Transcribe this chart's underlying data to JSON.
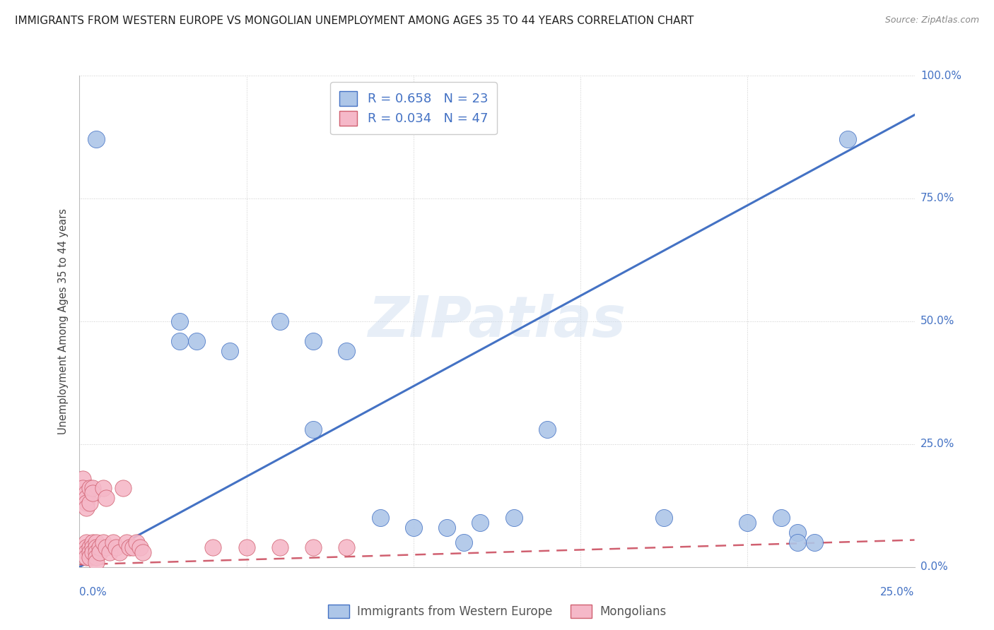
{
  "title": "IMMIGRANTS FROM WESTERN EUROPE VS MONGOLIAN UNEMPLOYMENT AMONG AGES 35 TO 44 YEARS CORRELATION CHART",
  "source": "Source: ZipAtlas.com",
  "ylabel": "Unemployment Among Ages 35 to 44 years",
  "legend_labels": [
    "Immigrants from Western Europe",
    "Mongolians"
  ],
  "blue_R": "R = 0.658",
  "blue_N": "N = 23",
  "pink_R": "R = 0.034",
  "pink_N": "N = 47",
  "blue_color": "#adc6e8",
  "pink_color": "#f5b8c8",
  "blue_line_color": "#4472c4",
  "pink_line_color": "#d06070",
  "watermark": "ZIPatlas",
  "blue_scatter": [
    [
      0.005,
      0.87
    ],
    [
      0.03,
      0.5
    ],
    [
      0.03,
      0.46
    ],
    [
      0.035,
      0.46
    ],
    [
      0.045,
      0.44
    ],
    [
      0.06,
      0.5
    ],
    [
      0.07,
      0.28
    ],
    [
      0.07,
      0.46
    ],
    [
      0.08,
      0.44
    ],
    [
      0.09,
      0.1
    ],
    [
      0.1,
      0.08
    ],
    [
      0.11,
      0.08
    ],
    [
      0.115,
      0.05
    ],
    [
      0.12,
      0.09
    ],
    [
      0.13,
      0.1
    ],
    [
      0.14,
      0.28
    ],
    [
      0.175,
      0.1
    ],
    [
      0.2,
      0.09
    ],
    [
      0.21,
      0.1
    ],
    [
      0.215,
      0.07
    ],
    [
      0.215,
      0.05
    ],
    [
      0.22,
      0.05
    ],
    [
      0.23,
      0.87
    ]
  ],
  "pink_scatter": [
    [
      0.001,
      0.18
    ],
    [
      0.001,
      0.16
    ],
    [
      0.002,
      0.15
    ],
    [
      0.002,
      0.14
    ],
    [
      0.002,
      0.13
    ],
    [
      0.002,
      0.12
    ],
    [
      0.002,
      0.05
    ],
    [
      0.002,
      0.04
    ],
    [
      0.002,
      0.03
    ],
    [
      0.002,
      0.02
    ],
    [
      0.003,
      0.16
    ],
    [
      0.003,
      0.13
    ],
    [
      0.003,
      0.04
    ],
    [
      0.003,
      0.03
    ],
    [
      0.003,
      0.02
    ],
    [
      0.004,
      0.16
    ],
    [
      0.004,
      0.15
    ],
    [
      0.004,
      0.05
    ],
    [
      0.004,
      0.04
    ],
    [
      0.004,
      0.03
    ],
    [
      0.005,
      0.05
    ],
    [
      0.005,
      0.04
    ],
    [
      0.005,
      0.03
    ],
    [
      0.005,
      0.02
    ],
    [
      0.005,
      0.01
    ],
    [
      0.006,
      0.04
    ],
    [
      0.006,
      0.03
    ],
    [
      0.007,
      0.16
    ],
    [
      0.007,
      0.05
    ],
    [
      0.008,
      0.14
    ],
    [
      0.008,
      0.04
    ],
    [
      0.009,
      0.03
    ],
    [
      0.01,
      0.05
    ],
    [
      0.011,
      0.04
    ],
    [
      0.012,
      0.03
    ],
    [
      0.013,
      0.16
    ],
    [
      0.014,
      0.05
    ],
    [
      0.015,
      0.04
    ],
    [
      0.016,
      0.04
    ],
    [
      0.017,
      0.05
    ],
    [
      0.018,
      0.04
    ],
    [
      0.019,
      0.03
    ],
    [
      0.04,
      0.04
    ],
    [
      0.05,
      0.04
    ],
    [
      0.06,
      0.04
    ],
    [
      0.07,
      0.04
    ],
    [
      0.08,
      0.04
    ]
  ],
  "xlim": [
    0.0,
    0.25
  ],
  "ylim": [
    0.0,
    1.0
  ],
  "yticks": [
    0.0,
    0.25,
    0.5,
    0.75,
    1.0
  ],
  "ytick_labels": [
    "0.0%",
    "25.0%",
    "50.0%",
    "75.0%",
    "100.0%"
  ],
  "xtick_labels": [
    "0.0%",
    "",
    "",
    "",
    "",
    "25.0%"
  ],
  "blue_trendline_x": [
    0.0,
    0.25
  ],
  "blue_trendline_y": [
    0.0,
    0.92
  ],
  "pink_trendline_x": [
    0.0,
    0.25
  ],
  "pink_trendline_y": [
    0.005,
    0.055
  ],
  "background_color": "#ffffff",
  "grid_color": "#cccccc"
}
